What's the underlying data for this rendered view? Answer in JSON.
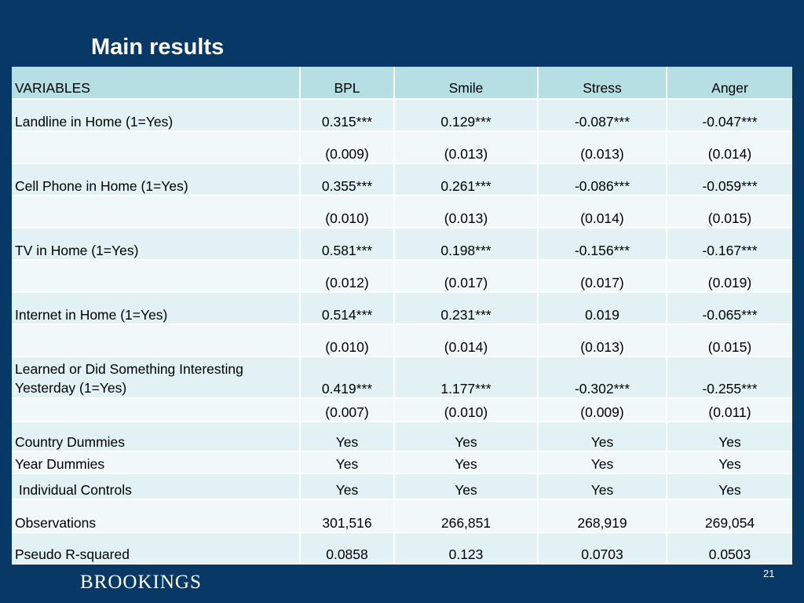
{
  "slide": {
    "title": "Main results",
    "logo": "BROOKINGS",
    "page_number": "21"
  },
  "table": {
    "headers": [
      "VARIABLES",
      "BPL",
      "Smile",
      "Stress",
      "Anger"
    ],
    "rows": [
      {
        "label": "Landline in Home (1=Yes)",
        "values": [
          "0.315***",
          "0.129***",
          "-0.087***",
          "-0.047***"
        ]
      },
      {
        "label": "",
        "values": [
          "(0.009)",
          "(0.013)",
          "(0.013)",
          "(0.014)"
        ]
      },
      {
        "label": "Cell Phone in Home (1=Yes)",
        "values": [
          "0.355***",
          "0.261***",
          "-0.086***",
          "-0.059***"
        ]
      },
      {
        "label": "",
        "values": [
          "(0.010)",
          "(0.013)",
          "(0.014)",
          "(0.015)"
        ]
      },
      {
        "label": "TV in Home (1=Yes)",
        "values": [
          "0.581***",
          "0.198***",
          "-0.156***",
          "-0.167***"
        ]
      },
      {
        "label": "",
        "values": [
          "(0.012)",
          "(0.017)",
          "(0.017)",
          "(0.019)"
        ]
      },
      {
        "label": "Internet in Home (1=Yes)",
        "values": [
          "0.514***",
          "0.231***",
          "0.019",
          "-0.065***"
        ]
      },
      {
        "label": "",
        "values": [
          "(0.010)",
          "(0.014)",
          "(0.013)",
          "(0.015)"
        ]
      },
      {
        "label": "Learned or Did Something Interesting Yesterday (1=Yes)",
        "values": [
          "0.419***",
          "1.177***",
          "-0.302***",
          "-0.255***"
        ]
      },
      {
        "label": "",
        "values": [
          "(0.007)",
          "(0.010)",
          "(0.009)",
          "(0.011)"
        ]
      },
      {
        "label": "Country Dummies",
        "values": [
          "Yes",
          "Yes",
          "Yes",
          "Yes"
        ]
      },
      {
        "label": "Year Dummies",
        "values": [
          "Yes",
          "Yes",
          "Yes",
          "Yes"
        ]
      },
      {
        "label": " Individual Controls",
        "values": [
          "Yes",
          "Yes",
          "Yes",
          "Yes"
        ]
      },
      {
        "label": "Observations",
        "values": [
          "301,516",
          "266,851",
          "268,919",
          "269,054"
        ]
      },
      {
        "label": "Pseudo R-squared",
        "values": [
          "0.0858",
          "0.123",
          "0.0703",
          "0.0503"
        ]
      }
    ]
  },
  "colors": {
    "background": "#083866",
    "header_fill": "#b6dfe3",
    "row_dark": "#e2f1f3",
    "row_light": "#f0f8f9"
  }
}
